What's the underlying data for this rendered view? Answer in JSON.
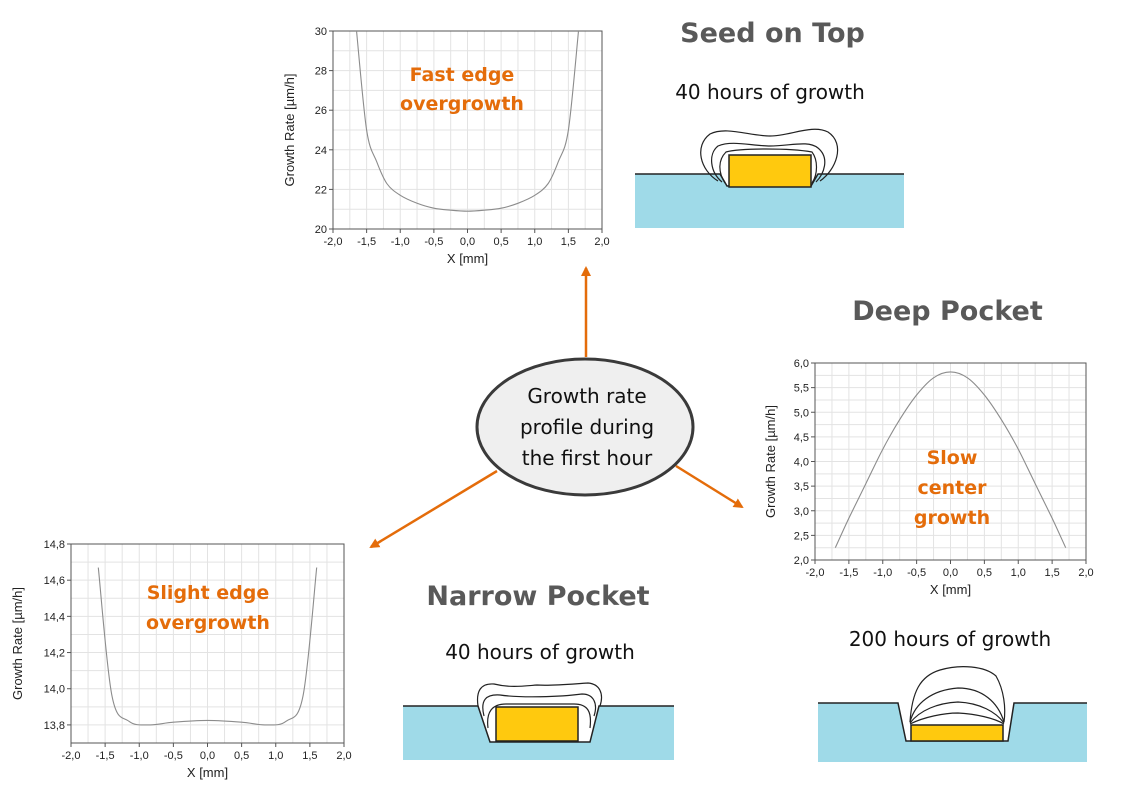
{
  "center": {
    "line1": "Growth rate",
    "line2": "profile during",
    "line3": "the first hour"
  },
  "sections": {
    "seed_on_top": {
      "title": "Seed on Top",
      "caption": "40 hours of growth",
      "annotation": [
        "Fast edge",
        "overgrowth"
      ]
    },
    "deep_pocket": {
      "title": "Deep Pocket",
      "caption": "200 hours of growth",
      "annotation": [
        "Slow",
        "center",
        "growth"
      ]
    },
    "narrow_pocket": {
      "title": "Narrow Pocket",
      "caption": "40 hours of growth",
      "annotation": [
        "Slight edge",
        "overgrowth"
      ]
    }
  },
  "colors": {
    "arrow": "#E46C0A",
    "annotation": "#E46C0A",
    "seed": "#FFC90E",
    "substrate": "#9FDAE8",
    "title": "#595959"
  },
  "chart_data": [
    {
      "type": "line",
      "xlabel": "X [mm]",
      "ylabel": "Growth Rate [µm/h]",
      "xlim": [
        -2.0,
        2.0
      ],
      "ylim": [
        20,
        30
      ],
      "xticks": [
        "-2,0",
        "-1,5",
        "-1,0",
        "-0,5",
        "0,0",
        "0,5",
        "1,0",
        "1,5",
        "2,0"
      ],
      "yticks": [
        "20",
        "22",
        "24",
        "26",
        "28",
        "30"
      ],
      "grid": true,
      "x": [
        -1.65,
        -1.5,
        -1.35,
        -1.2,
        -1.0,
        -0.75,
        -0.5,
        -0.25,
        0.0,
        0.25,
        0.5,
        0.75,
        1.0,
        1.2,
        1.35,
        1.5,
        1.65
      ],
      "y": [
        30.0,
        25.0,
        23.4,
        22.3,
        21.7,
        21.3,
        21.05,
        20.95,
        20.9,
        20.95,
        21.05,
        21.3,
        21.7,
        22.3,
        23.4,
        25.0,
        30.0
      ]
    },
    {
      "type": "line",
      "xlabel": "X [mm]",
      "ylabel": "Growth Rate [µm/h]",
      "xlim": [
        -2.0,
        2.0
      ],
      "ylim": [
        2.0,
        6.0
      ],
      "xticks": [
        "-2,0",
        "-1,5",
        "-1,0",
        "-0,5",
        "0,0",
        "0,5",
        "1,0",
        "1,5",
        "2,0"
      ],
      "yticks": [
        "2,0",
        "2,5",
        "3,0",
        "3,5",
        "4,0",
        "4,5",
        "5,0",
        "5,5",
        "6,0"
      ],
      "grid": true,
      "x": [
        -1.7,
        -1.5,
        -1.25,
        -1.0,
        -0.75,
        -0.5,
        -0.25,
        0.0,
        0.25,
        0.5,
        0.75,
        1.0,
        1.25,
        1.5,
        1.7
      ],
      "y": [
        2.25,
        2.85,
        3.55,
        4.25,
        4.85,
        5.35,
        5.7,
        5.82,
        5.7,
        5.35,
        4.85,
        4.25,
        3.55,
        2.85,
        2.25
      ]
    },
    {
      "type": "line",
      "xlabel": "X [mm]",
      "ylabel": "Growth Rate [µm/h]",
      "xlim": [
        -2.0,
        2.0
      ],
      "ylim": [
        13.7,
        14.8
      ],
      "xticks": [
        "-2,0",
        "-1,5",
        "-1,0",
        "-0,5",
        "0,0",
        "0,5",
        "1,0",
        "1,5",
        "2,0"
      ],
      "yticks": [
        "13,8",
        "14,0",
        "14,2",
        "14,4",
        "14,6",
        "14,8"
      ],
      "grid": true,
      "x": [
        -1.6,
        -1.4,
        -1.15,
        -0.85,
        -0.5,
        0.0,
        0.5,
        0.85,
        1.15,
        1.4,
        1.6
      ],
      "y": [
        14.67,
        13.96,
        13.82,
        13.8,
        13.815,
        13.825,
        13.815,
        13.8,
        13.82,
        13.96,
        14.67
      ]
    }
  ]
}
